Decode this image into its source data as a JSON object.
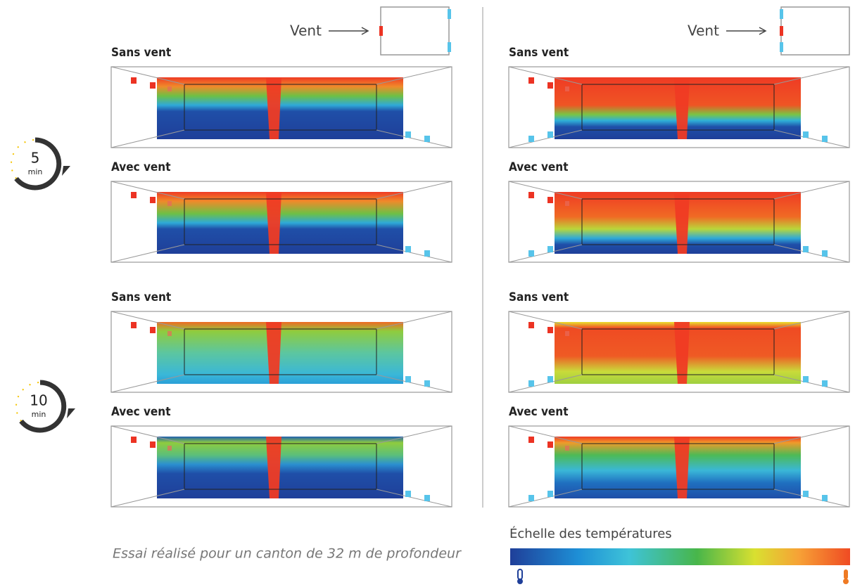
{
  "columns": [
    {
      "wind_label": "Vent",
      "panels": [
        {
          "label": "Sans vent"
        },
        {
          "label": "Avec vent"
        },
        {
          "label": "Sans vent"
        },
        {
          "label": "Avec vent"
        }
      ]
    },
    {
      "wind_label": "Vent",
      "panels": [
        {
          "label": "Sans vent"
        },
        {
          "label": "Avec vent"
        },
        {
          "label": "Sans vent"
        },
        {
          "label": "Avec vent"
        }
      ]
    }
  ],
  "timers": [
    {
      "value": 5,
      "unit": "min"
    },
    {
      "value": 10,
      "unit": "min"
    }
  ],
  "caption": "Essai réalisé pour un canton de 32 m de profondeur",
  "scale_title": "Échelle des températures"
}
